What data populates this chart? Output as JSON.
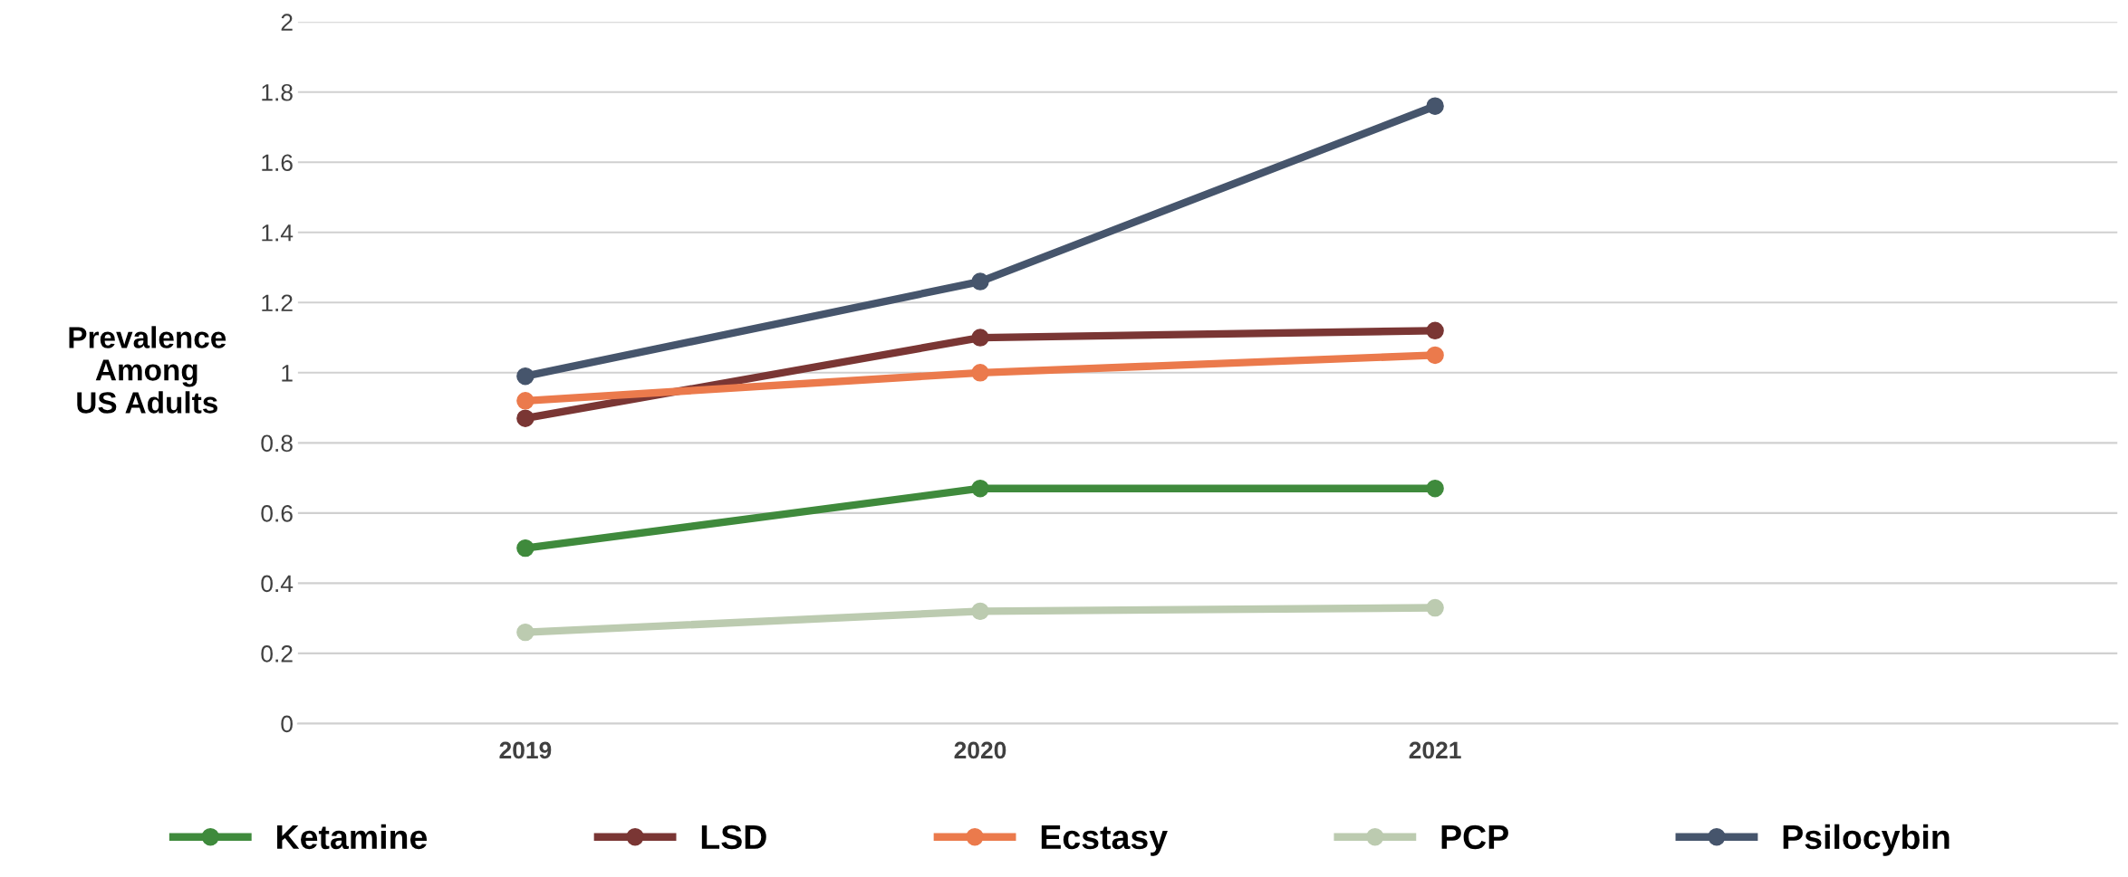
{
  "chart_data": {
    "type": "line",
    "ylabel": "Prevalence\nAmong\nUS Adults",
    "categories": [
      "2019",
      "2020",
      "2021",
      null
    ],
    "series": [
      {
        "name": "Ketamine",
        "color": "#3f8a3c",
        "values": [
          0.5,
          0.67,
          0.67,
          null
        ]
      },
      {
        "name": "LSD",
        "color": "#7a3634",
        "values": [
          0.87,
          1.1,
          1.12,
          null
        ]
      },
      {
        "name": "Ecstasy",
        "color": "#eb7a4c",
        "values": [
          0.92,
          1.0,
          1.05,
          null
        ]
      },
      {
        "name": "PCP",
        "color": "#bccbb0",
        "values": [
          0.26,
          0.32,
          0.33,
          null
        ]
      },
      {
        "name": "Psilocybin",
        "color": "#46556c",
        "values": [
          0.99,
          1.26,
          1.76,
          null
        ]
      }
    ],
    "ylim": [
      0,
      2
    ],
    "yticks": [
      0,
      0.2,
      0.4,
      0.6,
      0.8,
      1,
      1.2,
      1.4,
      1.6,
      1.8,
      2
    ],
    "grid": "y",
    "legend": "bottom",
    "marker": "circle",
    "line_style": "solid"
  }
}
